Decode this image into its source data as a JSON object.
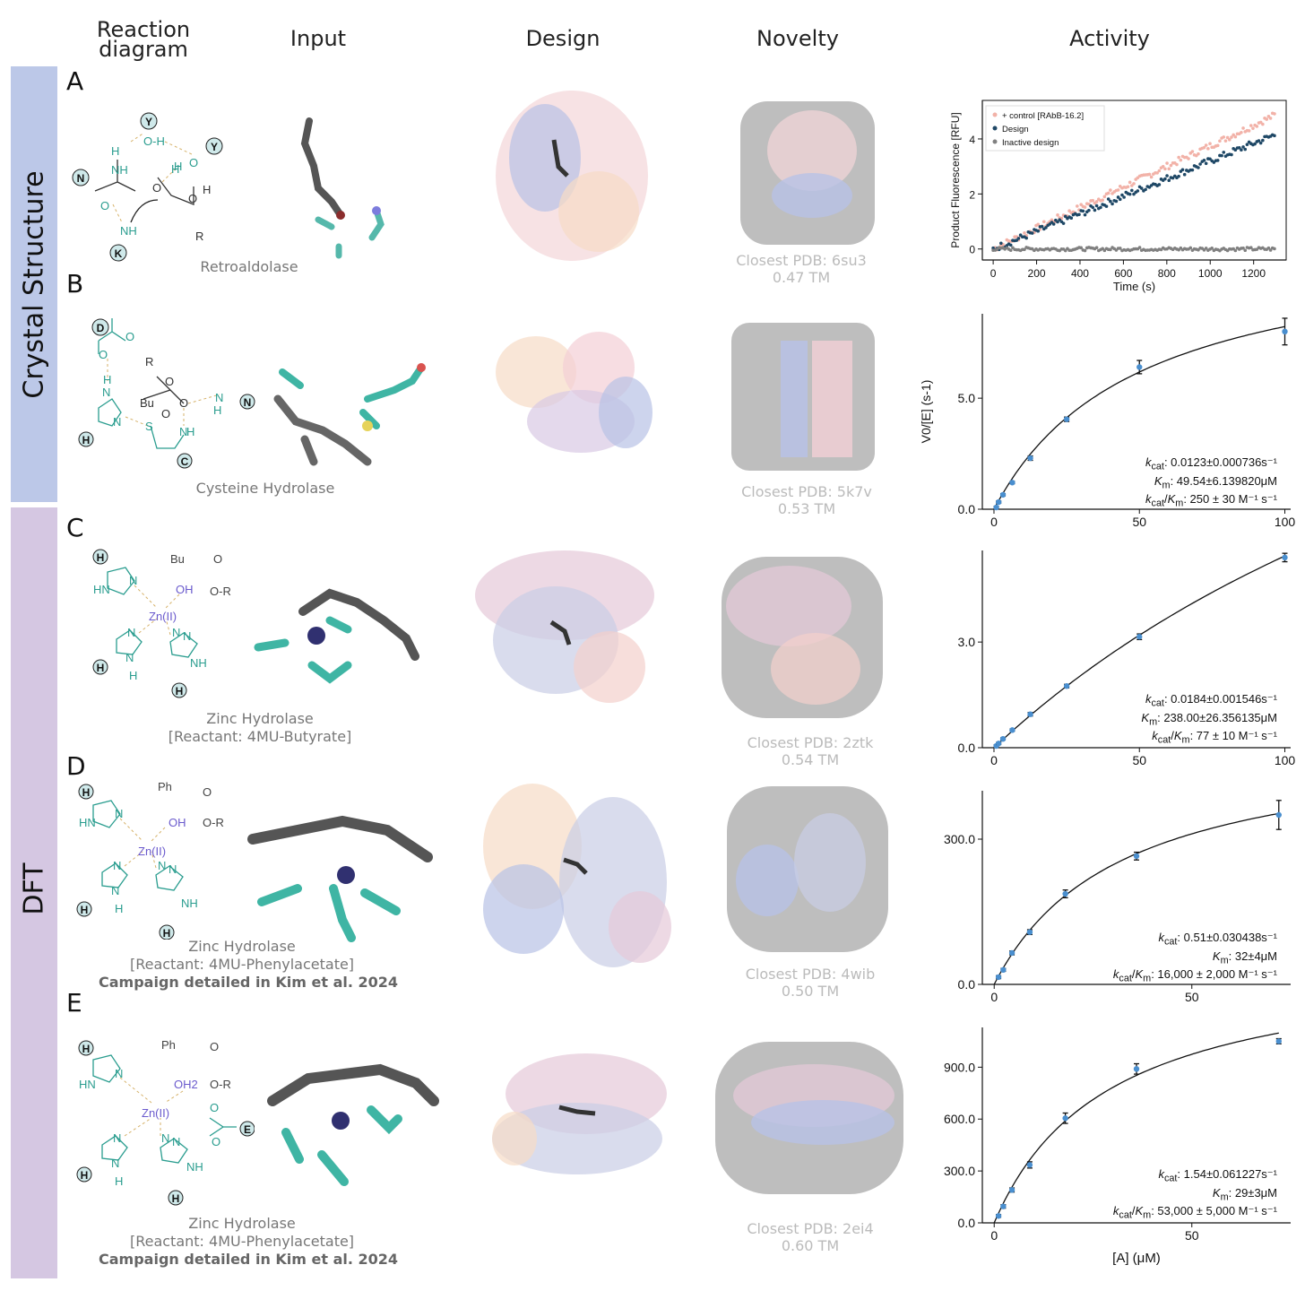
{
  "columns": {
    "reaction": "Reaction\ndiagram",
    "input": "Input",
    "design": "Design",
    "novelty": "Novelty",
    "activity": "Activity"
  },
  "bands": {
    "crystal": "Crystal Structure",
    "dft": "DFT",
    "crystal_color": "#bcc8e8",
    "dft_color": "#d5c7e2"
  },
  "panels": [
    {
      "letter": "A",
      "caption": "Retroaldolase",
      "caption2": "",
      "caption3": "",
      "closest": "Closest PDB: 6su3",
      "tm": "0.47 TM"
    },
    {
      "letter": "B",
      "caption": "Cysteine Hydrolase",
      "caption2": "",
      "caption3": "",
      "closest": "Closest PDB: 5k7v",
      "tm": "0.53 TM"
    },
    {
      "letter": "C",
      "caption": "Zinc Hydrolase",
      "caption2": "[Reactant: 4MU-Butyrate]",
      "caption3": "",
      "closest": "Closest PDB: 2ztk",
      "tm": "0.54 TM"
    },
    {
      "letter": "D",
      "caption": "Zinc Hydrolase",
      "caption2": "[Reactant: 4MU-Phenylacetate]",
      "caption3": "Campaign detailed in Kim et al. 2024",
      "closest": "Closest PDB: 4wib",
      "tm": "0.50 TM"
    },
    {
      "letter": "E",
      "caption": "Zinc Hydrolase",
      "caption2": "[Reactant: 4MU-Phenylacetate]",
      "caption3": "Campaign detailed in Kim et al. 2024",
      "closest": "Closest PDB: 2ei4",
      "tm": "0.60 TM"
    }
  ],
  "reaction_labels": {
    "A": [
      "Y",
      "Y",
      "N",
      "K",
      "O-H",
      "H",
      "NH",
      "H",
      "O",
      "O",
      "H",
      "O",
      "NH",
      "O",
      "H",
      "R"
    ],
    "B": [
      "D",
      "O",
      "O",
      "H",
      "N",
      "H",
      "R",
      "Bu",
      "O",
      "O",
      "O",
      "H",
      "N",
      "N",
      "N",
      "S",
      "N",
      "H",
      "C"
    ],
    "C": [
      "H",
      "HN",
      "N",
      "Bu",
      "O",
      "OH",
      "O-R",
      "Zn(II)",
      "N",
      "N",
      "H",
      "N",
      "H",
      "N",
      "NH",
      "H"
    ],
    "D": [
      "H",
      "HN",
      "N",
      "Ph",
      "O",
      "OH",
      "O-R",
      "Zn(II)",
      "N",
      "N",
      "H",
      "N",
      "H",
      "N",
      "NH",
      "H"
    ],
    "E": [
      "H",
      "HN",
      "N",
      "Ph",
      "O",
      "OH2",
      "O-R",
      "Zn(II)",
      "O",
      "O",
      "E",
      "N",
      "N",
      "H",
      "N",
      "H",
      "N",
      "NH",
      "H"
    ]
  },
  "chart_data": [
    {
      "type": "scatter",
      "panel": "A",
      "xlabel": "Time (s)",
      "ylabel": "Product Fluorescence [RFU]",
      "xlim": [
        -50,
        1350
      ],
      "ylim": [
        -0.4,
        5.4
      ],
      "xticks": [
        0,
        200,
        400,
        600,
        800,
        1000,
        1200
      ],
      "yticks": [
        0,
        2,
        4
      ],
      "legend_position": "top-left",
      "series": [
        {
          "name": "+ control [RAbB-16.2]",
          "color": "#f2b2a8",
          "slope": 0.00375,
          "x_start": 0,
          "x_end": 1300
        },
        {
          "name": "Design",
          "color": "#1f4866",
          "slope": 0.0032,
          "x_start": 0,
          "x_end": 1300
        },
        {
          "name": "Inactive design",
          "color": "#808080",
          "slope": 0.0,
          "x_start": 0,
          "x_end": 1300
        }
      ]
    },
    {
      "type": "scatter",
      "panel": "B",
      "xlabel": "",
      "ylabel": "V0/[E] (s-1)",
      "xlim": [
        -4,
        102
      ],
      "ylim": [
        0,
        8.8
      ],
      "xticks": [
        0,
        50,
        100
      ],
      "yticks": [
        0.0,
        5.0
      ],
      "points": [
        [
          0.8,
          0.08
        ],
        [
          1.6,
          0.32
        ],
        [
          3.1,
          0.65
        ],
        [
          6.3,
          1.2
        ],
        [
          12.5,
          2.3
        ],
        [
          25,
          4.05
        ],
        [
          50,
          6.4
        ],
        [
          100,
          8.0
        ]
      ],
      "errors": [
        0.05,
        0.05,
        0.05,
        0.05,
        0.1,
        0.1,
        0.3,
        0.6
      ],
      "fit": {
        "vmax": 12.3,
        "km": 49.54
      },
      "kcat": ": 0.0123±0.000736s⁻¹",
      "km_text": ": 49.54±6.139820μM",
      "kcatkm": ": 250 ± 30 M⁻¹ s⁻¹"
    },
    {
      "type": "scatter",
      "panel": "C",
      "xlabel": "",
      "ylabel": "",
      "xlim": [
        -4,
        102
      ],
      "ylim": [
        0,
        5.6
      ],
      "xticks": [
        0,
        50,
        100
      ],
      "yticks": [
        0.0,
        3.0
      ],
      "points": [
        [
          0.8,
          0.05
        ],
        [
          1.6,
          0.12
        ],
        [
          3.1,
          0.25
        ],
        [
          6.3,
          0.5
        ],
        [
          12.5,
          0.95
        ],
        [
          25,
          1.75
        ],
        [
          50,
          3.15
        ],
        [
          100,
          5.4
        ]
      ],
      "errors": [
        0.03,
        0.03,
        0.03,
        0.03,
        0.05,
        0.05,
        0.08,
        0.12
      ],
      "fit": {
        "vmax": 18.4,
        "km": 238.0
      },
      "kcat": ": 0.0184±0.001546s⁻¹",
      "km_text": ": 238.00±26.356135μM",
      "kcatkm": ": 77 ± 10 M⁻¹ s⁻¹"
    },
    {
      "type": "scatter",
      "panel": "D",
      "xlabel": "",
      "ylabel": "",
      "xlim": [
        -3,
        75
      ],
      "ylim": [
        0,
        400
      ],
      "xticks": [
        0,
        50
      ],
      "yticks": [
        0.0,
        300.0
      ],
      "points": [
        [
          1.1,
          15
        ],
        [
          2.3,
          30
        ],
        [
          4.5,
          65
        ],
        [
          9,
          108
        ],
        [
          18,
          187
        ],
        [
          36,
          265
        ],
        [
          72,
          350
        ]
      ],
      "errors": [
        3,
        3,
        4,
        5,
        8,
        8,
        30
      ],
      "fit": {
        "vmax": 510,
        "km": 32
      },
      "kcat": ": 0.51±0.030438s⁻¹",
      "km_text": ": 32±4μM",
      "kcatkm": ": 16,000 ± 2,000 M⁻¹ s⁻¹"
    },
    {
      "type": "scatter",
      "panel": "E",
      "xlabel": "[A] (μM)",
      "ylabel": "",
      "xlim": [
        -3,
        75
      ],
      "ylim": [
        0,
        1130
      ],
      "xticks": [
        0,
        50
      ],
      "yticks": [
        0.0,
        300.0,
        600.0,
        900.0
      ],
      "points": [
        [
          1.1,
          40
        ],
        [
          2.3,
          95
        ],
        [
          4.5,
          190
        ],
        [
          9,
          335
        ],
        [
          18,
          605
        ],
        [
          36,
          890
        ],
        [
          72,
          1050
        ]
      ],
      "errors": [
        8,
        10,
        12,
        18,
        30,
        30,
        15
      ],
      "fit": {
        "vmax": 1540,
        "km": 29
      },
      "kcat": ": 1.54±0.061227s⁻¹",
      "km_text": ": 29±3μM",
      "kcatkm": ": 53,000 ± 5,000 M⁻¹ s⁻¹"
    }
  ]
}
